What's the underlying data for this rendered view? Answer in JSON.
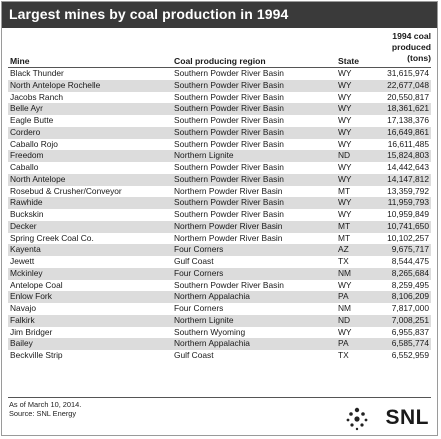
{
  "title": "Largest mines by coal production in 1994",
  "columns": {
    "mine": "Mine",
    "region": "Coal producing region",
    "state": "State",
    "production": [
      "1994 coal",
      "produced",
      "(tons)"
    ]
  },
  "rows": [
    {
      "mine": "Black Thunder",
      "region": "Southern Powder River Basin",
      "state": "WY",
      "production": "31,615,974"
    },
    {
      "mine": "North Antelope Rochelle",
      "region": "Southern Powder River Basin",
      "state": "WY",
      "production": "22,677,048"
    },
    {
      "mine": "Jacobs Ranch",
      "region": "Southern Powder River Basin",
      "state": "WY",
      "production": "20,550,817"
    },
    {
      "mine": "Belle Ayr",
      "region": "Southern Powder River Basin",
      "state": "WY",
      "production": "18,361,621"
    },
    {
      "mine": "Eagle Butte",
      "region": "Southern Powder River Basin",
      "state": "WY",
      "production": "17,138,376"
    },
    {
      "mine": "Cordero",
      "region": "Southern Powder River Basin",
      "state": "WY",
      "production": "16,649,861"
    },
    {
      "mine": "Caballo Rojo",
      "region": "Southern Powder River Basin",
      "state": "WY",
      "production": "16,611,485"
    },
    {
      "mine": "Freedom",
      "region": "Northern Lignite",
      "state": "ND",
      "production": "15,824,803"
    },
    {
      "mine": "Caballo",
      "region": "Southern Powder River Basin",
      "state": "WY",
      "production": "14,442,643"
    },
    {
      "mine": "North Antelope",
      "region": "Southern Powder River Basin",
      "state": "WY",
      "production": "14,147,812"
    },
    {
      "mine": "Rosebud & Crusher/Conveyor",
      "region": "Northern Powder River Basin",
      "state": "MT",
      "production": "13,359,792"
    },
    {
      "mine": "Rawhide",
      "region": "Southern Powder River Basin",
      "state": "WY",
      "production": "11,959,793"
    },
    {
      "mine": "Buckskin",
      "region": "Southern Powder River Basin",
      "state": "WY",
      "production": "10,959,849"
    },
    {
      "mine": "Decker",
      "region": "Northern Powder River Basin",
      "state": "MT",
      "production": "10,741,650"
    },
    {
      "mine": "Spring Creek Coal Co.",
      "region": "Northern Powder River Basin",
      "state": "MT",
      "production": "10,102,257"
    },
    {
      "mine": "Kayenta",
      "region": "Four Corners",
      "state": "AZ",
      "production": "9,675,717"
    },
    {
      "mine": "Jewett",
      "region": "Gulf Coast",
      "state": "TX",
      "production": "8,544,475"
    },
    {
      "mine": "Mckinley",
      "region": "Four Corners",
      "state": "NM",
      "production": "8,265,684"
    },
    {
      "mine": "Antelope Coal",
      "region": "Southern Powder River Basin",
      "state": "WY",
      "production": "8,259,495"
    },
    {
      "mine": "Enlow Fork",
      "region": "Northern Appalachia",
      "state": "PA",
      "production": "8,106,209"
    },
    {
      "mine": "Navajo",
      "region": "Four Corners",
      "state": "NM",
      "production": "7,817,000"
    },
    {
      "mine": "Falkirk",
      "region": "Northern Lignite",
      "state": "ND",
      "production": "7,008,251"
    },
    {
      "mine": "Jim Bridger",
      "region": "Southern Wyoming",
      "state": "WY",
      "production": "6,955,837"
    },
    {
      "mine": "Bailey",
      "region": "Northern Appalachia",
      "state": "PA",
      "production": "6,585,774"
    },
    {
      "mine": "Beckville Strip",
      "region": "Gulf Coast",
      "state": "TX",
      "production": "6,552,959"
    }
  ],
  "footnotes": {
    "as_of": "As of March 10, 2014.",
    "source": "Source: SNL Energy"
  },
  "logo": {
    "text": "SNL",
    "icon": "snl-dots-icon"
  },
  "colors": {
    "banner": "#3a3a3a",
    "row_alt": "#dcdcdc"
  }
}
